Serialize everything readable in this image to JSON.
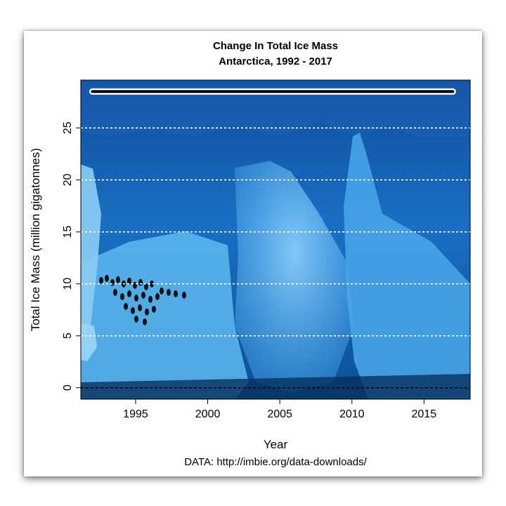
{
  "chart_data": {
    "type": "line",
    "title": "Change In Total Ice Mass",
    "subtitle": "Antarctica, 1992 - 2017",
    "xlabel": "Year",
    "ylabel": "Total Ice Mass (million gigatonnes)",
    "caption": "DATA: http://imbie.org/data-downloads/",
    "xlim": [
      1991.2,
      2018.2
    ],
    "ylim": [
      -1.1,
      29.6
    ],
    "xticks": [
      1995,
      2000,
      2005,
      2010,
      2015
    ],
    "yticks": [
      0,
      5,
      10,
      15,
      20,
      25
    ],
    "grid": "horizontal dashed white",
    "background": "iceberg photograph with penguins",
    "baseline": 0,
    "series": [
      {
        "x": [
          1992,
          1993,
          1994,
          1995,
          1996,
          1997,
          1998,
          1999,
          2000,
          2001,
          2002,
          2003,
          2004,
          2005,
          2006,
          2007,
          2008,
          2009,
          2010,
          2011,
          2012,
          2013,
          2014,
          2015,
          2016,
          2017
        ],
        "values": [
          28.5,
          28.5,
          28.5,
          28.5,
          28.5,
          28.5,
          28.5,
          28.5,
          28.5,
          28.5,
          28.5,
          28.5,
          28.5,
          28.5,
          28.5,
          28.5,
          28.5,
          28.5,
          28.5,
          28.5,
          28.5,
          28.5,
          28.5,
          28.5,
          28.5,
          28.5
        ],
        "color": "#000000"
      }
    ]
  }
}
